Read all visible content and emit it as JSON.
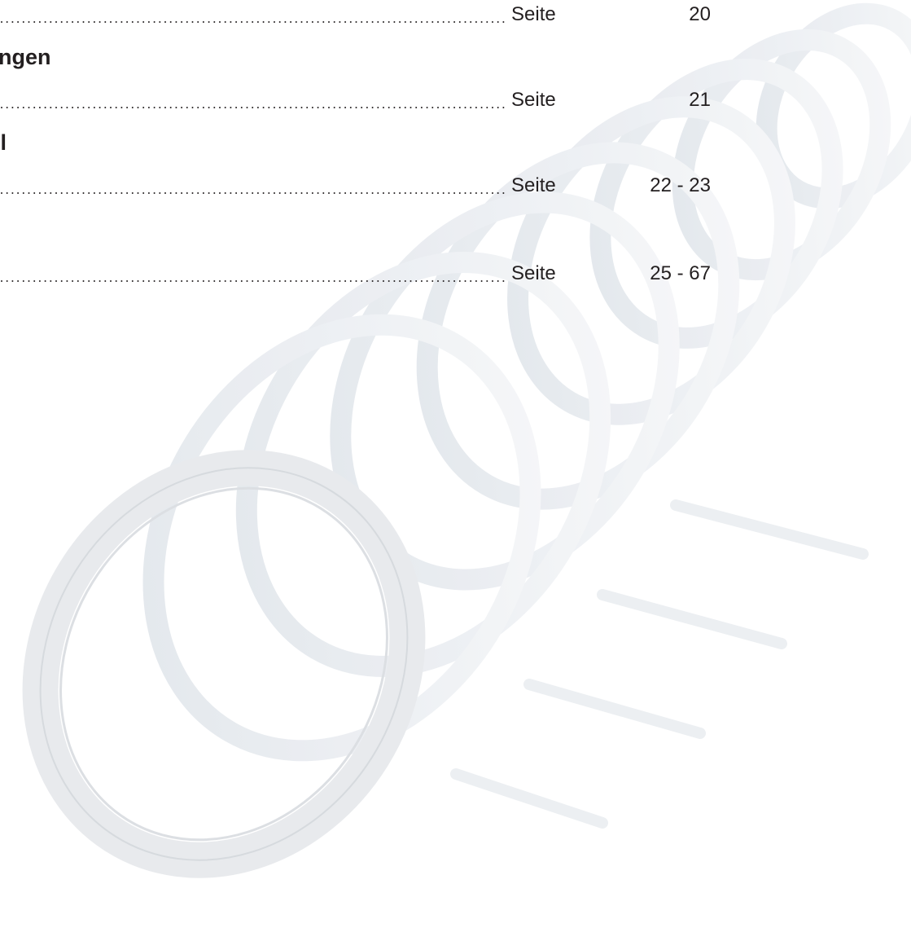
{
  "toc": {
    "items": [
      {
        "kind": "entry",
        "label": "Seite",
        "pages": "20"
      },
      {
        "kind": "heading",
        "text": "ngen"
      },
      {
        "kind": "entry",
        "label": "Seite",
        "pages": "21"
      },
      {
        "kind": "heading",
        "text": "hl"
      },
      {
        "kind": "entry",
        "label": "Seite",
        "pages": "22 - 23"
      },
      {
        "kind": "entry",
        "label": "Seite",
        "pages": "25 - 67"
      }
    ]
  }
}
